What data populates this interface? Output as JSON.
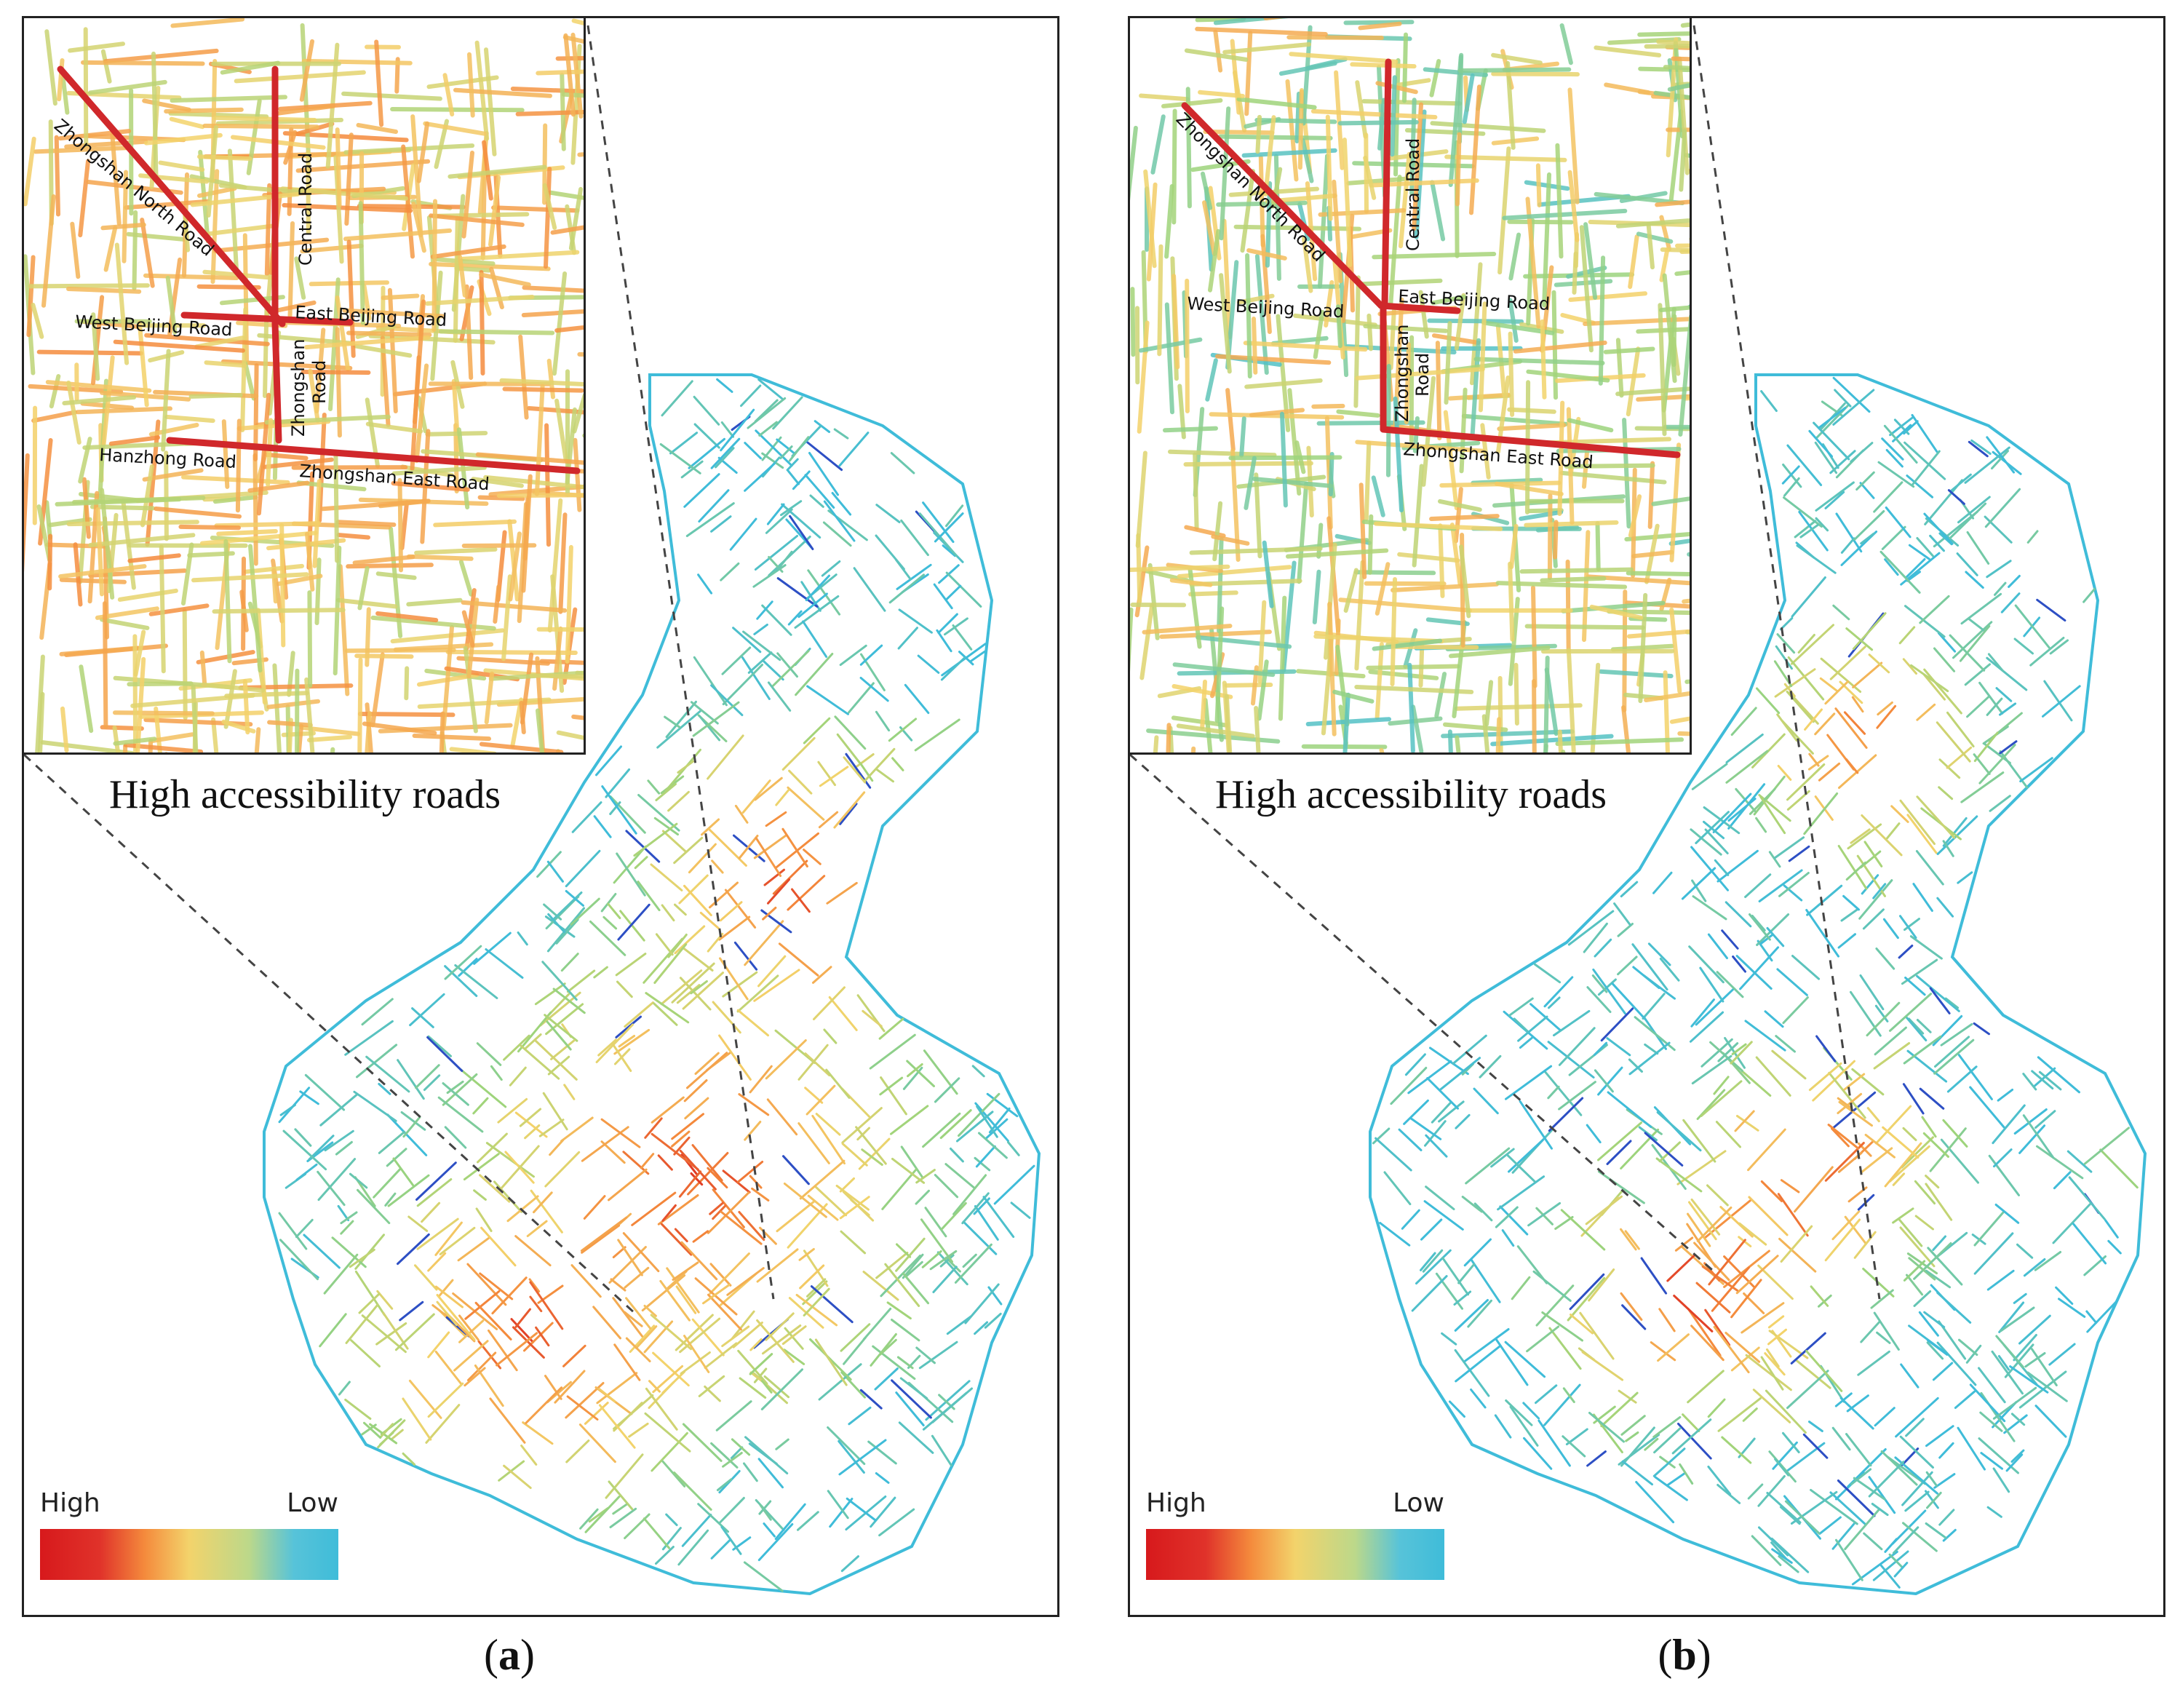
{
  "panels": [
    {
      "id": "a",
      "caption": "High accessibility roads",
      "panel_label": "a",
      "legend": {
        "high": "High",
        "low": "Low"
      },
      "road_labels": {
        "zhongshan_north": "Zhongshan North Road",
        "central": "Central Road",
        "east_beijing": "East Beijing Road",
        "west_beijing": "West Beijing Road",
        "zhongshan_1": "Zhongshan",
        "zhongshan_2": "Road",
        "hanzhong": "Hanzhong Road",
        "zhongshan_east": "Zhongshan East Road"
      }
    },
    {
      "id": "b",
      "caption": "High accessibility roads",
      "panel_label": "b",
      "legend": {
        "high": "High",
        "low": "Low"
      },
      "road_labels": {
        "zhongshan_north": "Zhongshan North Road",
        "central": "Central Road",
        "east_beijing": "East Beijing Road",
        "west_beijing": "West Beijing Road",
        "zhongshan_1": "Zhongshan",
        "zhongshan_2": "Road",
        "zhongshan_east": "Zhongshan East Road"
      }
    }
  ],
  "colors": {
    "high": "#d7191c",
    "mid_high": "#f48a3c",
    "mid": "#f3d36b",
    "mid_low": "#9fd47a",
    "low": "#3fbcd9",
    "lowest": "#2d4fc4",
    "highlight_road": "#d0282b"
  }
}
